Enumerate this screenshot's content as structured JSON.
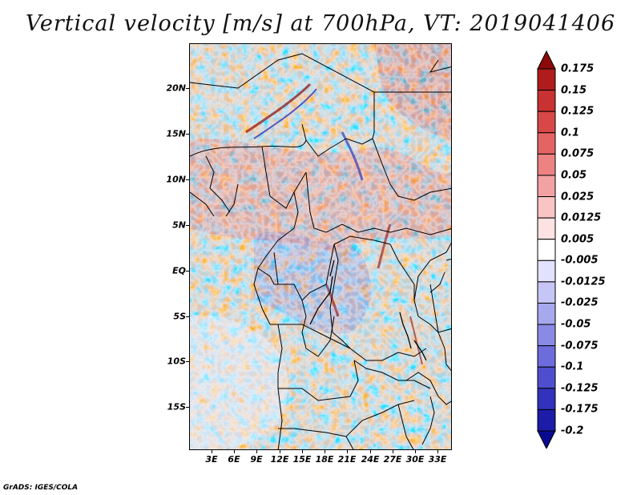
{
  "title": "Vertical velocity [m/s] at 700hPa, VT: 2019041406",
  "credit": "GrADS: IGES/COLA",
  "lat_labels": [
    "20N",
    "15N",
    "10N",
    "5N",
    "EQ",
    "5S",
    "10S",
    "15S"
  ],
  "lon_labels": [
    "3E",
    "6E",
    "9E",
    "12E",
    "15E",
    "18E",
    "21E",
    "24E",
    "27E",
    "30E",
    "33E"
  ],
  "colorbar": {
    "labels": [
      "0.175",
      "0.15",
      "0.125",
      "0.1",
      "0.075",
      "0.05",
      "0.025",
      "0.0125",
      "0.005",
      "-0.005",
      "-0.0125",
      "-0.025",
      "-0.05",
      "-0.075",
      "-0.1",
      "-0.125",
      "-0.175",
      "-0.2"
    ],
    "colors": [
      "#8c0a0a",
      "#b01c1c",
      "#c83232",
      "#d84848",
      "#e46464",
      "#ec8282",
      "#f2a2a2",
      "#f8c4c4",
      "#fce2e2",
      "#ffffff",
      "#e2e2fc",
      "#c6c6f6",
      "#a8a8ee",
      "#8a8ae6",
      "#6c6cdc",
      "#4e4ece",
      "#3232bc",
      "#1c1ca8",
      "#0a0a90"
    ]
  }
}
